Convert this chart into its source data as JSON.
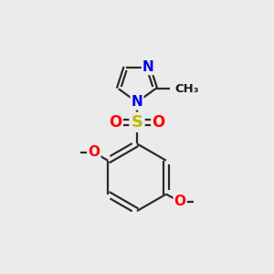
{
  "bg_color": "#ebebeb",
  "bond_color": "#2a2a2a",
  "bond_width": 1.6,
  "atom_colors": {
    "N": "#0000ee",
    "O": "#ff0000",
    "S": "#bbbb00",
    "C": "#1a1a1a"
  },
  "font_size_atom": 11,
  "font_size_methyl": 9.5
}
